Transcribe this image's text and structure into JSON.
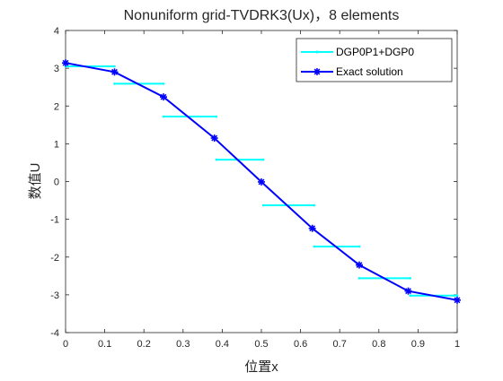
{
  "chart_data": {
    "type": "line",
    "title": "Nonuniform grid-TVDRK3(Ux)，8 elements",
    "xlabel": "位置x",
    "ylabel": "数值U",
    "xlim": [
      0,
      1
    ],
    "ylim": [
      -4,
      4
    ],
    "x_ticks": [
      0,
      0.1,
      0.2,
      0.3,
      0.4,
      0.5,
      0.6,
      0.7,
      0.8,
      0.9,
      1
    ],
    "x_tick_labels": [
      "0",
      "0.1",
      "0.2",
      "0.3",
      "0.4",
      "0.5",
      "0.6",
      "0.7",
      "0.8",
      "0.9",
      "1"
    ],
    "y_ticks": [
      -4,
      -3,
      -2,
      -1,
      0,
      1,
      2,
      3,
      4
    ],
    "y_tick_labels": [
      "-4",
      "-3",
      "-2",
      "-1",
      "0",
      "1",
      "2",
      "3",
      "4"
    ],
    "grid": false,
    "legend_position": "top-right",
    "series": [
      {
        "name": "DGP0P1+DGP0",
        "color": "#00ffff",
        "style": "piecewise-constant",
        "segments": [
          {
            "x0": 0.0,
            "x1": 0.125,
            "y": 3.05
          },
          {
            "x0": 0.125,
            "x1": 0.25,
            "y": 2.59
          },
          {
            "x0": 0.25,
            "x1": 0.385,
            "y": 1.72
          },
          {
            "x0": 0.385,
            "x1": 0.505,
            "y": 0.58
          },
          {
            "x0": 0.505,
            "x1": 0.635,
            "y": -0.63
          },
          {
            "x0": 0.635,
            "x1": 0.75,
            "y": -1.72
          },
          {
            "x0": 0.75,
            "x1": 0.88,
            "y": -2.56
          },
          {
            "x0": 0.88,
            "x1": 1.0,
            "y": -3.02
          }
        ]
      },
      {
        "name": "Exact solution",
        "color": "#0000ff",
        "style": "line-with-star-markers",
        "x": [
          0.0,
          0.125,
          0.25,
          0.38,
          0.5,
          0.63,
          0.75,
          0.875,
          1.0
        ],
        "y": [
          3.14,
          2.9,
          2.24,
          1.15,
          -0.01,
          -1.24,
          -2.21,
          -2.9,
          -3.14
        ]
      }
    ]
  }
}
